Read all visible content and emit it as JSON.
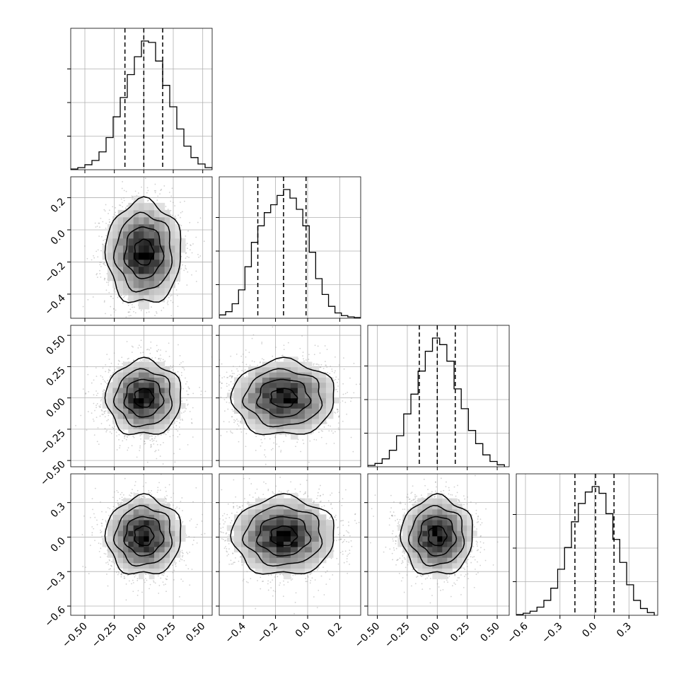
{
  "chart_data": {
    "type": "corner",
    "parameters": 4,
    "grid": true,
    "panels": [
      {
        "row": 0,
        "col": 0,
        "type": "histogram",
        "parameter": 0,
        "xlim": [
          -0.62,
          0.58
        ],
        "bin_edges": [
          -0.62,
          -0.56,
          -0.5,
          -0.44,
          -0.38,
          -0.32,
          -0.26,
          -0.2,
          -0.14,
          -0.08,
          -0.02,
          0.04,
          0.1,
          0.16,
          0.22,
          0.28,
          0.34,
          0.4,
          0.46,
          0.52,
          0.58
        ],
        "counts": [
          1,
          3,
          7,
          13,
          25,
          45,
          74,
          101,
          133,
          158,
          180,
          178,
          152,
          118,
          88,
          57,
          33,
          17,
          8,
          3
        ],
        "quantiles": [
          -0.16,
          0.0,
          0.16
        ],
        "ytick_fractions": [
          0.25,
          0.5,
          0.75
        ]
      },
      {
        "row": 1,
        "col": 0,
        "type": "density2d",
        "x_param": 0,
        "y_param": 1,
        "xlim": [
          -0.62,
          0.58
        ],
        "ylim": [
          -0.55,
          0.33
        ],
        "x_center": 0.0,
        "y_center": -0.14,
        "x_sigma": 0.16,
        "y_sigma": 0.16
      },
      {
        "row": 1,
        "col": 1,
        "type": "histogram",
        "parameter": 1,
        "xlim": [
          -0.55,
          0.33
        ],
        "bin_edges": [
          -0.55,
          -0.51,
          -0.47,
          -0.43,
          -0.39,
          -0.35,
          -0.31,
          -0.27,
          -0.23,
          -0.19,
          -0.15,
          -0.11,
          -0.07,
          -0.03,
          0.01,
          0.05,
          0.09,
          0.13,
          0.17,
          0.21,
          0.25,
          0.29,
          0.33
        ],
        "counts": [
          5,
          10,
          22,
          43,
          78,
          115,
          140,
          160,
          172,
          186,
          195,
          182,
          165,
          140,
          100,
          60,
          36,
          18,
          8,
          4,
          2,
          1
        ],
        "quantiles": [
          -0.31,
          -0.15,
          -0.01
        ],
        "ytick_fractions": [
          0.25,
          0.5,
          0.75
        ]
      },
      {
        "row": 2,
        "col": 0,
        "type": "density2d",
        "x_param": 0,
        "y_param": 2,
        "xlim": [
          -0.62,
          0.58
        ],
        "ylim": [
          -0.55,
          0.58
        ],
        "x_center": 0.0,
        "y_center": 0.0,
        "x_sigma": 0.16,
        "y_sigma": 0.15
      },
      {
        "row": 2,
        "col": 1,
        "type": "density2d",
        "x_param": 1,
        "y_param": 2,
        "xlim": [
          -0.55,
          0.33
        ],
        "ylim": [
          -0.55,
          0.58
        ],
        "x_center": -0.15,
        "y_center": 0.0,
        "x_sigma": 0.16,
        "y_sigma": 0.15
      },
      {
        "row": 2,
        "col": 2,
        "type": "histogram",
        "parameter": 2,
        "xlim": [
          -0.58,
          0.6
        ],
        "bin_edges": [
          -0.58,
          -0.52,
          -0.46,
          -0.4,
          -0.34,
          -0.28,
          -0.22,
          -0.16,
          -0.1,
          -0.04,
          0.02,
          0.08,
          0.14,
          0.2,
          0.26,
          0.32,
          0.38,
          0.44,
          0.5,
          0.56
        ],
        "counts": [
          2,
          5,
          12,
          25,
          47,
          80,
          110,
          145,
          175,
          195,
          185,
          160,
          118,
          88,
          55,
          35,
          18,
          8,
          3
        ],
        "quantiles": [
          -0.15,
          0.0,
          0.15
        ],
        "ytick_fractions": [
          0.25,
          0.5,
          0.75
        ]
      },
      {
        "row": 3,
        "col": 0,
        "type": "density2d",
        "x_param": 0,
        "y_param": 3,
        "xlim": [
          -0.62,
          0.58
        ],
        "ylim": [
          -0.68,
          0.55
        ],
        "x_center": 0.0,
        "y_center": 0.01,
        "x_sigma": 0.16,
        "y_sigma": 0.17
      },
      {
        "row": 3,
        "col": 1,
        "type": "density2d",
        "x_param": 1,
        "y_param": 3,
        "xlim": [
          -0.55,
          0.33
        ],
        "ylim": [
          -0.68,
          0.55
        ],
        "x_center": -0.15,
        "y_center": 0.01,
        "x_sigma": 0.16,
        "y_sigma": 0.17
      },
      {
        "row": 3,
        "col": 2,
        "type": "density2d",
        "x_param": 2,
        "y_param": 3,
        "xlim": [
          -0.58,
          0.6
        ],
        "ylim": [
          -0.68,
          0.55
        ],
        "x_center": 0.0,
        "y_center": 0.01,
        "x_sigma": 0.15,
        "y_sigma": 0.17
      },
      {
        "row": 3,
        "col": 3,
        "type": "histogram",
        "parameter": 3,
        "xlim": [
          -0.68,
          0.55
        ],
        "bin_edges": [
          -0.68,
          -0.62,
          -0.56,
          -0.5,
          -0.44,
          -0.38,
          -0.32,
          -0.26,
          -0.2,
          -0.14,
          -0.08,
          -0.02,
          0.04,
          0.1,
          0.16,
          0.22,
          0.28,
          0.34,
          0.4,
          0.46,
          0.52
        ],
        "counts": [
          1,
          3,
          6,
          12,
          22,
          40,
          68,
          100,
          138,
          165,
          182,
          190,
          180,
          150,
          112,
          78,
          45,
          22,
          10,
          4
        ],
        "quantiles": [
          -0.17,
          0.01,
          0.17
        ],
        "ytick_fractions": [
          0.25,
          0.5,
          0.75
        ]
      }
    ],
    "row_y_ticks": [
      [],
      {
        "values": [
          0.2,
          0.0,
          -0.2,
          -0.4
        ],
        "labels": [
          "0.2",
          "0.0",
          "−0.2",
          "−0.4"
        ]
      },
      {
        "values": [
          0.5,
          0.25,
          0.0,
          -0.25,
          -0.5
        ],
        "labels": [
          "0.50",
          "0.25",
          "0.00",
          "−0.25",
          "−0.50"
        ]
      },
      {
        "values": [
          0.3,
          0.0,
          -0.3,
          -0.6
        ],
        "labels": [
          "0.3",
          "0.0",
          "−0.3",
          "−0.6"
        ]
      }
    ],
    "col_x_ticks": [
      {
        "values": [
          -0.5,
          -0.25,
          0.0,
          0.25,
          0.5
        ],
        "labels": [
          "−0.50",
          "−0.25",
          "0.00",
          "0.25",
          "0.50"
        ]
      },
      {
        "values": [
          -0.4,
          -0.2,
          0.0,
          0.2
        ],
        "labels": [
          "−0.4",
          "−0.2",
          "0.0",
          "0.2"
        ]
      },
      {
        "values": [
          -0.5,
          -0.25,
          0.0,
          0.25,
          0.5
        ],
        "labels": [
          "−0.50",
          "−0.25",
          "0.00",
          "0.25",
          "0.50"
        ]
      },
      {
        "values": [
          -0.6,
          -0.3,
          0.0,
          0.3
        ],
        "labels": [
          "−0.6",
          "−0.3",
          "0.0",
          "0.3"
        ]
      }
    ]
  }
}
